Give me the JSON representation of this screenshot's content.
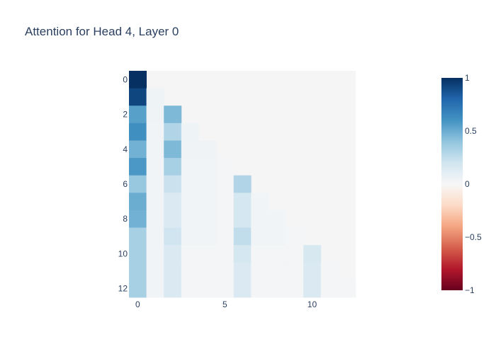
{
  "chart_data": {
    "type": "heatmap",
    "title": "Attention for Head 4, Layer 0",
    "xlabel": "",
    "ylabel": "",
    "n": 13,
    "x_ticks": [
      0,
      5,
      10
    ],
    "y_ticks": [
      0,
      2,
      4,
      6,
      8,
      10,
      12
    ],
    "y_axis_reversed": true,
    "colorscale": "RdBu",
    "zmin": -1,
    "zmax": 1,
    "colorbar_ticks": [
      {
        "value": 1,
        "label": "1"
      },
      {
        "value": 0.5,
        "label": "0.5"
      },
      {
        "value": 0,
        "label": "0"
      },
      {
        "value": -0.5,
        "label": "−0.5"
      },
      {
        "value": -1,
        "label": "−1"
      }
    ],
    "plot_background": "#f5f5f5",
    "z": [
      [
        1.0
      ],
      [
        0.92,
        0.05
      ],
      [
        0.55,
        0.04,
        0.45
      ],
      [
        0.62,
        0.03,
        0.3,
        0.05
      ],
      [
        0.48,
        0.03,
        0.45,
        0.04,
        0.04
      ],
      [
        0.58,
        0.03,
        0.33,
        0.03,
        0.03,
        0.02
      ],
      [
        0.38,
        0.03,
        0.22,
        0.03,
        0.03,
        0.02,
        0.3
      ],
      [
        0.5,
        0.03,
        0.15,
        0.03,
        0.03,
        0.02,
        0.18,
        0.03
      ],
      [
        0.48,
        0.03,
        0.15,
        0.03,
        0.03,
        0.02,
        0.18,
        0.03,
        0.03
      ],
      [
        0.33,
        0.03,
        0.2,
        0.03,
        0.03,
        0.02,
        0.25,
        0.03,
        0.03,
        0.02
      ],
      [
        0.33,
        0.03,
        0.15,
        0.02,
        0.02,
        0.02,
        0.18,
        0.02,
        0.02,
        0.02,
        0.17
      ],
      [
        0.33,
        0.03,
        0.15,
        0.02,
        0.02,
        0.02,
        0.15,
        0.02,
        0.02,
        0.02,
        0.15,
        0.02
      ],
      [
        0.33,
        0.03,
        0.15,
        0.02,
        0.02,
        0.02,
        0.15,
        0.02,
        0.02,
        0.02,
        0.15,
        0.02,
        0.02
      ]
    ]
  }
}
